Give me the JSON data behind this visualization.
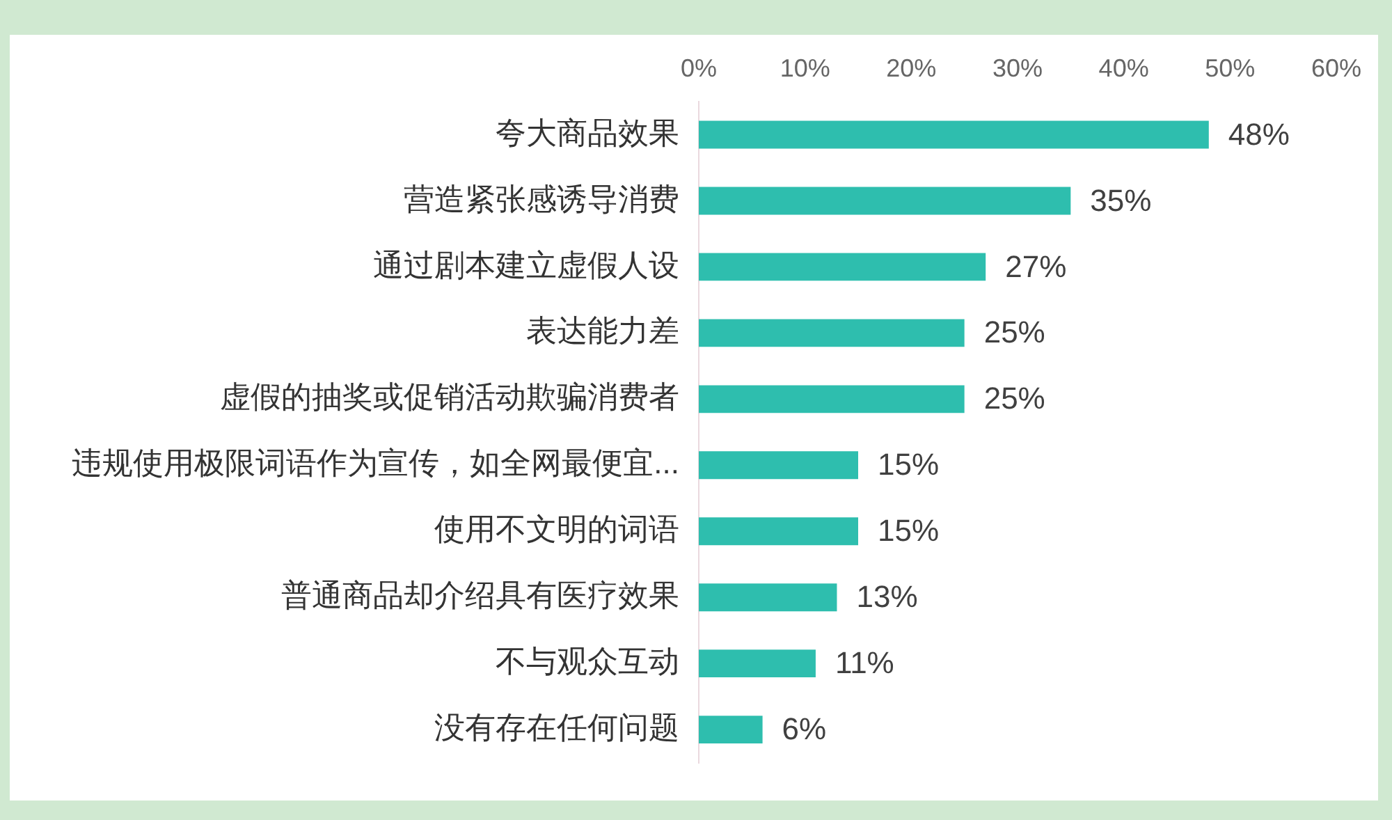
{
  "chart_data": {
    "type": "bar",
    "orientation": "horizontal",
    "categories": [
      "夸大商品效果",
      "营造紧张感诱导消费",
      "通过剧本建立虚假人设",
      "表达能力差",
      "虚假的抽奖或促销活动欺骗消费者",
      "违规使用极限词语作为宣传，如全网最便宜...",
      "使用不文明的词语",
      "普通商品却介绍具有医疗效果",
      "不与观众互动",
      "没有存在任何问题"
    ],
    "values": [
      48,
      35,
      27,
      25,
      25,
      15,
      15,
      13,
      11,
      6
    ],
    "value_labels": [
      "48%",
      "35%",
      "27%",
      "25%",
      "25%",
      "15%",
      "15%",
      "13%",
      "11%",
      "6%"
    ],
    "color": "#2ebeae",
    "xlim": [
      0,
      60
    ],
    "xticks": [
      {
        "value": 0,
        "label": "0%"
      },
      {
        "value": 10,
        "label": "10%"
      },
      {
        "value": 20,
        "label": "20%"
      },
      {
        "value": 30,
        "label": "30%"
      },
      {
        "value": 40,
        "label": "40%"
      },
      {
        "value": 50,
        "label": "50%"
      },
      {
        "value": 60,
        "label": "60%"
      }
    ]
  }
}
